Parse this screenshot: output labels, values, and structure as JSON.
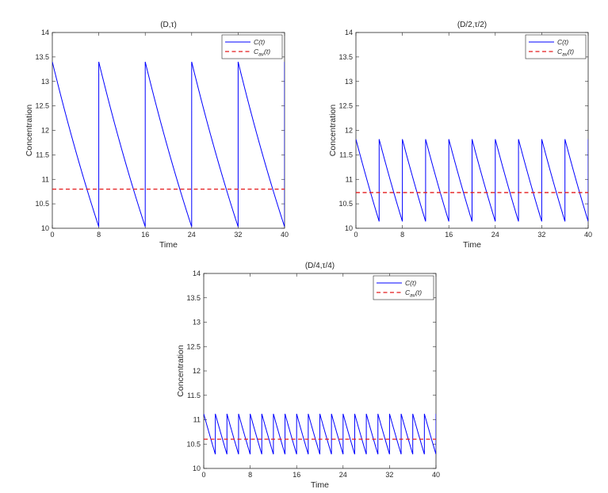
{
  "colors": {
    "curve": "#0000ff",
    "average": "#e31a1c",
    "axes": "#262626"
  },
  "chart_data": [
    {
      "type": "line",
      "title": "(D,τ)",
      "xlabel": "Time",
      "ylabel": "Concentration",
      "xlim": [
        0,
        40
      ],
      "ylim": [
        10,
        14
      ],
      "xticks": [
        0,
        8,
        16,
        24,
        32,
        40
      ],
      "yticks": [
        10,
        10.5,
        11,
        11.5,
        12,
        12.5,
        13,
        13.5,
        14
      ],
      "ytick_labels": [
        "10",
        "10.5",
        "11",
        "11.5",
        "12",
        "12.5",
        "13",
        "13.5",
        "14"
      ],
      "legend_position": "top-right",
      "legend": [
        {
          "label": "C(t)",
          "main": "C",
          "sub": "",
          "arg": "(t)",
          "style": "solid"
        },
        {
          "label": "Cav(t)",
          "main": "C",
          "sub": "av",
          "arg": "(t)",
          "style": "dashed"
        }
      ],
      "series": [
        {
          "kind": "pulse",
          "dose_interval": 8,
          "peak": 13.4,
          "trough": 10.03
        },
        {
          "kind": "constant",
          "value": 10.8
        }
      ]
    },
    {
      "type": "line",
      "title": "(D/2,τ/2)",
      "xlabel": "Time",
      "ylabel": "Concentration",
      "xlim": [
        0,
        40
      ],
      "ylim": [
        10,
        14
      ],
      "xticks": [
        0,
        8,
        16,
        24,
        32,
        40
      ],
      "yticks": [
        10,
        10.5,
        11,
        11.5,
        12,
        12.5,
        13,
        13.5,
        14
      ],
      "ytick_labels": [
        "10",
        "10.5",
        "11",
        "11.5",
        "12",
        "12.5",
        "13",
        "13.5",
        "14"
      ],
      "legend_position": "top-right",
      "legend": [
        {
          "label": "C(t)",
          "main": "C",
          "sub": "",
          "arg": "(t)",
          "style": "solid"
        },
        {
          "label": "Cav(t)",
          "main": "C",
          "sub": "av",
          "arg": "(t)",
          "style": "dashed"
        }
      ],
      "series": [
        {
          "kind": "pulse",
          "dose_interval": 4,
          "peak": 11.82,
          "trough": 10.14
        },
        {
          "kind": "constant",
          "value": 10.73
        }
      ]
    },
    {
      "type": "line",
      "title": "(D/4,τ/4)",
      "xlabel": "Time",
      "ylabel": "Concentration",
      "xlim": [
        0,
        40
      ],
      "ylim": [
        10,
        14
      ],
      "xticks": [
        0,
        8,
        16,
        24,
        32,
        40
      ],
      "yticks": [
        10,
        10.5,
        11,
        11.5,
        12,
        12.5,
        13,
        13.5,
        14
      ],
      "ytick_labels": [
        "10",
        "10.5",
        "11",
        "11.5",
        "12",
        "12.5",
        "13",
        "13.5",
        "14"
      ],
      "legend_position": "top-right",
      "legend": [
        {
          "label": "C(t)",
          "main": "C",
          "sub": "",
          "arg": "(t)",
          "style": "solid"
        },
        {
          "label": "Cav(t)",
          "main": "C",
          "sub": "av",
          "arg": "(t)",
          "style": "dashed"
        }
      ],
      "series": [
        {
          "kind": "pulse",
          "dose_interval": 2,
          "peak": 11.12,
          "trough": 10.29
        },
        {
          "kind": "constant",
          "value": 10.6
        }
      ]
    }
  ]
}
